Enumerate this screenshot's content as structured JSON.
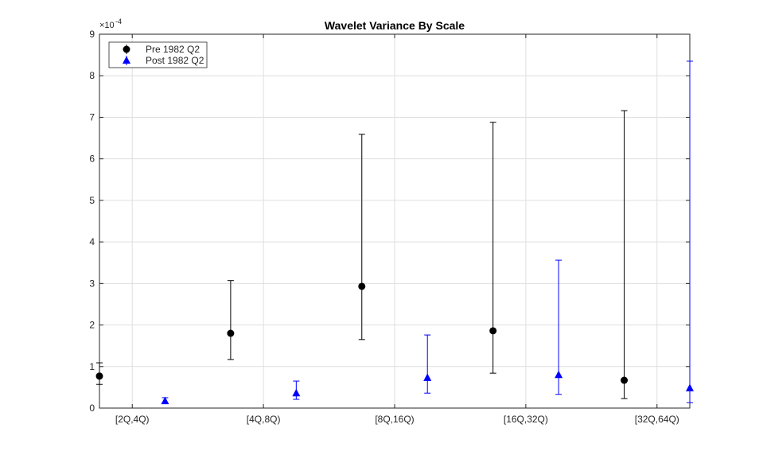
{
  "chart_data": {
    "type": "errorbar",
    "title": "Wavelet Variance By Scale",
    "y_exponent_label": "×10",
    "y_exponent_power": "-4",
    "xlim": [
      0.75,
      5.25
    ],
    "xticks": [
      {
        "value": 1,
        "label": "[2Q,4Q)"
      },
      {
        "value": 2,
        "label": "[4Q,8Q)"
      },
      {
        "value": 3,
        "label": "[8Q,16Q)"
      },
      {
        "value": 4,
        "label": "[16Q,32Q)"
      },
      {
        "value": 5,
        "label": "[32Q,64Q)"
      }
    ],
    "ylim": [
      0,
      9
    ],
    "yticks": [
      0,
      1,
      2,
      3,
      4,
      5,
      6,
      7,
      8,
      9
    ],
    "grid": true,
    "legend": "top-left",
    "series": [
      {
        "name": "Pre 1982 Q2",
        "color": "#000000",
        "marker": "circle",
        "x": [
          0.75,
          1.75,
          2.75,
          3.75,
          4.75
        ],
        "values": [
          0.77,
          1.8,
          2.93,
          1.86,
          0.67
        ],
        "lower": [
          0.57,
          1.17,
          1.65,
          0.84,
          0.23
        ],
        "upper": [
          1.09,
          3.07,
          6.59,
          6.88,
          7.16
        ]
      },
      {
        "name": "Post 1982 Q2",
        "color": "#0000ff",
        "marker": "triangle",
        "x": [
          1.25,
          2.25,
          3.25,
          4.25,
          5.25
        ],
        "values": [
          0.17,
          0.36,
          0.73,
          0.8,
          0.48
        ],
        "lower": [
          0.11,
          0.21,
          0.36,
          0.33,
          0.13
        ],
        "upper": [
          0.25,
          0.65,
          1.76,
          3.56,
          8.35
        ]
      }
    ]
  }
}
